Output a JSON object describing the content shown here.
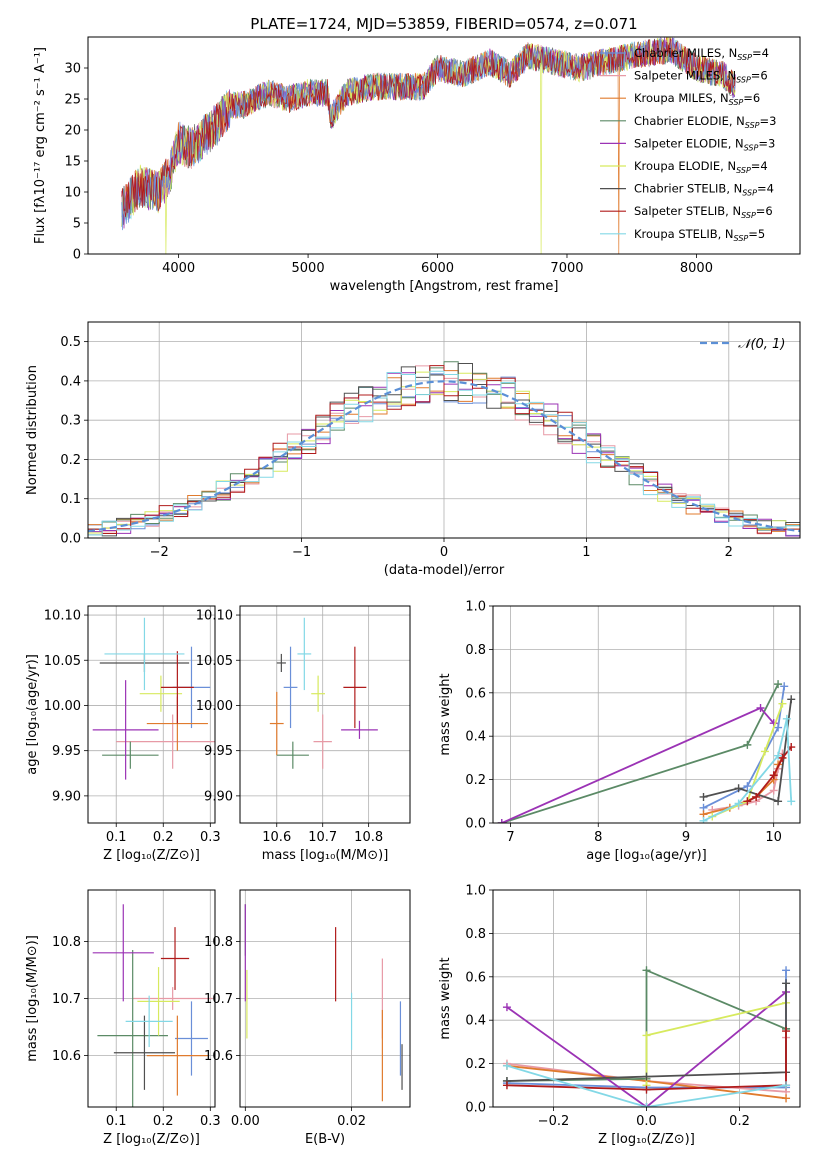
{
  "figure": {
    "title": "PLATE=1724, MJD=53859, FIBERID=0574, z=0.071"
  },
  "colors": {
    "Chabrier MILES": "#6a8fd8",
    "Salpeter MILES": "#e79aa6",
    "Kroupa MILES": "#e07b2e",
    "Chabrier ELODIE": "#5b8a66",
    "Salpeter ELODIE": "#9b33b5",
    "Kroupa ELODIE": "#d7ea5e",
    "Chabrier STELIB": "#505050",
    "Salpeter STELIB": "#b01b1b",
    "Kroupa STELIB": "#83d8e6",
    "grid": "#b0b0b0",
    "gauss": "#5b8fd6"
  },
  "chart_data": [
    {
      "id": "spectrum",
      "type": "line",
      "title": "PLATE=1724, MJD=53859, FIBERID=0574, z=0.071",
      "xlabel": "wavelength [Angstrom, rest frame]",
      "ylabel": "Flux [fλ10⁻¹⁷ erg cm⁻² s⁻¹ A⁻¹]",
      "xlim": [
        3300,
        8800
      ],
      "ylim": [
        0,
        35
      ],
      "xticks": [
        4000,
        5000,
        6000,
        7000,
        8000
      ],
      "yticks": [
        0,
        5,
        10,
        15,
        20,
        25,
        30
      ],
      "x_range_data": [
        3560,
        8300
      ],
      "envelope": {
        "x": [
          3560,
          3700,
          3850,
          3950,
          4000,
          4100,
          4200,
          4300,
          4400,
          4500,
          4700,
          4860,
          5000,
          5150,
          5175,
          5300,
          5500,
          5700,
          5890,
          6000,
          6200,
          6400,
          6560,
          6700,
          6900,
          7100,
          7300,
          7500,
          7800,
          8000,
          8200,
          8300
        ],
        "y": [
          7,
          11,
          10,
          14,
          18,
          17,
          19,
          21,
          24,
          24,
          26,
          25,
          26,
          26,
          22,
          26,
          27,
          27,
          27,
          30,
          29,
          31,
          29,
          32,
          31,
          30,
          31,
          32,
          33,
          30,
          29,
          27
        ]
      },
      "dropouts": [
        {
          "x": 3900,
          "series": "Kroupa ELODIE"
        },
        {
          "x": 6800,
          "series": "Kroupa ELODIE"
        },
        {
          "x": 7400,
          "series": "Kroupa MILES"
        }
      ],
      "legend": [
        {
          "label": "Chabrier MILES, N",
          "nssp": "4"
        },
        {
          "label": "Salpeter MILES, N",
          "nssp": "6"
        },
        {
          "label": "Kroupa MILES, N",
          "nssp": "6"
        },
        {
          "label": "Chabrier ELODIE, N",
          "nssp": "3"
        },
        {
          "label": "Salpeter ELODIE, N",
          "nssp": "3"
        },
        {
          "label": "Kroupa ELODIE, N",
          "nssp": "4"
        },
        {
          "label": "Chabrier STELIB, N",
          "nssp": "4"
        },
        {
          "label": "Salpeter STELIB, N",
          "nssp": "6"
        },
        {
          "label": "Kroupa STELIB, N",
          "nssp": "5"
        }
      ],
      "legend_sub": "SSP",
      "legend_position": "right"
    },
    {
      "id": "histogram",
      "type": "line",
      "xlabel": "(data-model)/error",
      "ylabel": "Normed distribution",
      "xlim": [
        -2.5,
        2.5
      ],
      "ylim": [
        0,
        0.55
      ],
      "xticks": [
        -2,
        -1,
        0,
        1,
        2
      ],
      "yticks": [
        0.0,
        0.1,
        0.2,
        0.3,
        0.4,
        0.5
      ],
      "bin_width": 0.1,
      "legend": "𝒩(0, 1)",
      "legend_position": "top-right",
      "grid": true
    },
    {
      "id": "age-vs-Z",
      "type": "scatter",
      "xlabel": "Z [log₁₀(Z/Z⊙)]",
      "ylabel": "age  [log₁₀(age/yr)]",
      "xlim": [
        0.04,
        0.31
      ],
      "ylim": [
        9.87,
        10.11
      ],
      "xticks": [
        0.1,
        0.2,
        0.3
      ],
      "yticks": [
        9.9,
        9.95,
        10.0,
        10.05,
        10.1
      ],
      "points": [
        {
          "series": "Chabrier MILES",
          "x": 0.26,
          "y": 10.02,
          "xerr": 0.04,
          "yerr": 0.045
        },
        {
          "series": "Salpeter MILES",
          "x": 0.22,
          "y": 9.96,
          "xerr": 0.12,
          "yerr": 0.03
        },
        {
          "series": "Kroupa MILES",
          "x": 0.23,
          "y": 9.98,
          "xerr": 0.065,
          "yerr": 0.03
        },
        {
          "series": "Chabrier ELODIE",
          "x": 0.13,
          "y": 9.945,
          "xerr": 0.06,
          "yerr": 0.015
        },
        {
          "series": "Salpeter ELODIE",
          "x": 0.12,
          "y": 9.973,
          "xerr": 0.07,
          "yerr": 0.055
        },
        {
          "series": "Kroupa ELODIE",
          "x": 0.195,
          "y": 10.013,
          "xerr": 0.045,
          "yerr": 0.02
        },
        {
          "series": "Chabrier STELIB",
          "x": 0.16,
          "y": 10.047,
          "xerr": 0.095,
          "yerr": 0.01
        },
        {
          "series": "Salpeter STELIB",
          "x": 0.23,
          "y": 10.02,
          "xerr": 0.035,
          "yerr": 0.04
        },
        {
          "series": "Kroupa STELIB",
          "x": 0.16,
          "y": 10.057,
          "xerr": 0.085,
          "yerr": 0.04
        }
      ],
      "grid": true
    },
    {
      "id": "age-vs-mass",
      "type": "scatter",
      "xlabel": "mass [log₁₀(M/M⊙)]",
      "ylabel": "",
      "xlim": [
        10.52,
        10.89
      ],
      "ylim": [
        9.87,
        10.11
      ],
      "xticks": [
        10.6,
        10.7,
        10.8
      ],
      "yticks": [
        9.9,
        9.95,
        10.0,
        10.05,
        10.1
      ],
      "points": [
        {
          "series": "Chabrier MILES",
          "x": 10.63,
          "y": 10.02,
          "xerr": 0.015,
          "yerr": 0.045
        },
        {
          "series": "Salpeter MILES",
          "x": 10.7,
          "y": 9.96,
          "xerr": 0.02,
          "yerr": 0.03
        },
        {
          "series": "Kroupa MILES",
          "x": 10.6,
          "y": 9.98,
          "xerr": 0.015,
          "yerr": 0.035
        },
        {
          "series": "Chabrier ELODIE",
          "x": 10.635,
          "y": 9.945,
          "xerr": 0.035,
          "yerr": 0.015
        },
        {
          "series": "Salpeter ELODIE",
          "x": 10.78,
          "y": 9.973,
          "xerr": 0.04,
          "yerr": 0.01
        },
        {
          "series": "Kroupa ELODIE",
          "x": 10.69,
          "y": 10.013,
          "xerr": 0.015,
          "yerr": 0.02
        },
        {
          "series": "Chabrier STELIB",
          "x": 10.61,
          "y": 10.047,
          "xerr": 0.01,
          "yerr": 0.01
        },
        {
          "series": "Salpeter STELIB",
          "x": 10.77,
          "y": 10.02,
          "xerr": 0.025,
          "yerr": 0.045
        },
        {
          "series": "Kroupa STELIB",
          "x": 10.66,
          "y": 10.057,
          "xerr": 0.015,
          "yerr": 0.04
        }
      ],
      "grid": true
    },
    {
      "id": "mass-weight-vs-age",
      "type": "line",
      "xlabel": "age  [log₁₀(age/yr)]",
      "ylabel": "mass weight",
      "xlim": [
        6.8,
        10.3
      ],
      "ylim": [
        0,
        1
      ],
      "xticks": [
        7,
        8,
        9,
        10
      ],
      "yticks": [
        0.0,
        0.2,
        0.4,
        0.6,
        0.8,
        1.0
      ],
      "series": [
        {
          "name": "Chabrier MILES",
          "x": [
            9.2,
            9.7,
            10.05,
            10.12
          ],
          "y": [
            0.07,
            0.17,
            0.44,
            0.63
          ]
        },
        {
          "name": "Salpeter MILES",
          "x": [
            9.3,
            9.6,
            9.8,
            10.0,
            10.05,
            10.1
          ],
          "y": [
            0.06,
            0.08,
            0.1,
            0.15,
            0.25,
            0.32
          ]
        },
        {
          "name": "Kroupa MILES",
          "x": [
            9.2,
            9.5,
            9.8,
            10.0,
            10.05,
            10.1
          ],
          "y": [
            0.04,
            0.07,
            0.12,
            0.2,
            0.27,
            0.3
          ]
        },
        {
          "name": "Chabrier ELODIE",
          "x": [
            6.9,
            9.7,
            10.05
          ],
          "y": [
            0.0,
            0.36,
            0.64
          ]
        },
        {
          "name": "Salpeter ELODIE",
          "x": [
            6.9,
            9.85,
            10.0
          ],
          "y": [
            0.0,
            0.53,
            0.46
          ]
        },
        {
          "name": "Kroupa ELODIE",
          "x": [
            9.3,
            9.7,
            9.9,
            10.1
          ],
          "y": [
            0.03,
            0.1,
            0.33,
            0.55
          ]
        },
        {
          "name": "Chabrier STELIB",
          "x": [
            9.2,
            9.6,
            10.05,
            10.2
          ],
          "y": [
            0.12,
            0.16,
            0.1,
            0.57
          ]
        },
        {
          "name": "Salpeter STELIB",
          "x": [
            9.7,
            9.8,
            10.0,
            10.1,
            10.2
          ],
          "y": [
            0.1,
            0.12,
            0.22,
            0.3,
            0.35
          ]
        },
        {
          "name": "Kroupa STELIB",
          "x": [
            9.2,
            9.6,
            10.05,
            10.15,
            10.2
          ],
          "y": [
            0.01,
            0.09,
            0.31,
            0.48,
            0.1
          ]
        }
      ],
      "grid": true
    },
    {
      "id": "mass-vs-Z",
      "type": "scatter",
      "xlabel": "Z [log₁₀(Z/Z⊙)]",
      "ylabel": "mass [log₁₀(M/M⊙)]",
      "xlim": [
        0.04,
        0.31
      ],
      "ylim": [
        10.51,
        10.89
      ],
      "xticks": [
        0.1,
        0.2,
        0.3
      ],
      "yticks": [
        10.6,
        10.7,
        10.8
      ],
      "points": [
        {
          "series": "Chabrier MILES",
          "x": 0.26,
          "y": 10.63,
          "xerr": 0.035,
          "yerr": 0.065
        },
        {
          "series": "Salpeter MILES",
          "x": 0.22,
          "y": 10.7,
          "xerr": 0.085,
          "yerr": 0.02
        },
        {
          "series": "Kroupa MILES",
          "x": 0.23,
          "y": 10.6,
          "xerr": 0.065,
          "yerr": 0.07
        },
        {
          "series": "Chabrier ELODIE",
          "x": 0.135,
          "y": 10.635,
          "xerr": 0.075,
          "yerr": 0.15
        },
        {
          "series": "Salpeter ELODIE",
          "x": 0.115,
          "y": 10.78,
          "xerr": 0.065,
          "yerr": 0.085
        },
        {
          "series": "Kroupa ELODIE",
          "x": 0.19,
          "y": 10.695,
          "xerr": 0.045,
          "yerr": 0.06
        },
        {
          "series": "Chabrier STELIB",
          "x": 0.16,
          "y": 10.605,
          "xerr": 0.065,
          "yerr": 0.065
        },
        {
          "series": "Salpeter STELIB",
          "x": 0.225,
          "y": 10.77,
          "xerr": 0.03,
          "yerr": 0.055
        },
        {
          "series": "Kroupa STELIB",
          "x": 0.17,
          "y": 10.66,
          "xerr": 0.05,
          "yerr": 0.045
        }
      ],
      "grid": true
    },
    {
      "id": "mass-vs-ebv",
      "type": "scatter",
      "xlabel": "E(B-V)",
      "ylabel": "",
      "xlim": [
        -0.001,
        0.031
      ],
      "ylim": [
        10.51,
        10.89
      ],
      "xticks": [
        0.0,
        0.02
      ],
      "yticks": [
        10.6,
        10.7,
        10.8
      ],
      "points": [
        {
          "series": "Chabrier MILES",
          "x": 0.0292,
          "y": 10.63,
          "yerr": 0.065
        },
        {
          "series": "Salpeter MILES",
          "x": 0.0258,
          "y": 10.7,
          "yerr": 0.07
        },
        {
          "series": "Kroupa MILES",
          "x": 0.0258,
          "y": 10.6,
          "yerr": 0.08
        },
        {
          "series": "Chabrier ELODIE",
          "x": 0.0,
          "y": 10.82,
          "yerr": 0.045
        },
        {
          "series": "Salpeter ELODIE",
          "x": 0.0,
          "y": 10.78,
          "yerr": 0.085
        },
        {
          "series": "Kroupa ELODIE",
          "x": 0.0003,
          "y": 10.69,
          "yerr": 0.06
        },
        {
          "series": "Chabrier STELIB",
          "x": 0.0295,
          "y": 10.58,
          "yerr": 0.04
        },
        {
          "series": "Salpeter STELIB",
          "x": 0.017,
          "y": 10.76,
          "yerr": 0.065
        },
        {
          "series": "Kroupa STELIB",
          "x": 0.02,
          "y": 10.66,
          "yerr": 0.05
        }
      ],
      "grid": true
    },
    {
      "id": "mass-weight-vs-Z",
      "type": "line",
      "xlabel": "Z [log₁₀(Z/Z⊙)]",
      "ylabel": "mass weight",
      "xlim": [
        -0.33,
        0.33
      ],
      "ylim": [
        0,
        1
      ],
      "xticks": [
        -0.2,
        0.0,
        0.2
      ],
      "yticks": [
        0.0,
        0.2,
        0.4,
        0.6,
        0.8,
        1.0
      ],
      "series": [
        {
          "name": "Chabrier MILES",
          "x": [
            -0.3,
            0.0,
            0.3,
            0.3
          ],
          "y": [
            0.11,
            0.09,
            0.09,
            0.63
          ]
        },
        {
          "name": "Salpeter MILES",
          "x": [
            -0.3,
            0.0,
            0.3,
            0.3
          ],
          "y": [
            0.2,
            0.12,
            0.07,
            0.32
          ]
        },
        {
          "name": "Kroupa MILES",
          "x": [
            -0.3,
            0.0,
            0.3
          ],
          "y": [
            0.19,
            0.12,
            0.04
          ]
        },
        {
          "name": "Chabrier ELODIE",
          "x": [
            -0.3,
            0.0,
            0.0,
            0.3,
            0.3
          ],
          "y": [
            0.12,
            0.13,
            0.63,
            0.36,
            0.36
          ]
        },
        {
          "name": "Salpeter ELODIE",
          "x": [
            -0.3,
            0.0,
            0.3
          ],
          "y": [
            0.46,
            0.0,
            0.53
          ]
        },
        {
          "name": "Kroupa ELODIE",
          "x": [
            0.0,
            0.0,
            0.3
          ],
          "y": [
            0.1,
            0.33,
            0.48
          ]
        },
        {
          "name": "Chabrier STELIB",
          "x": [
            -0.3,
            0.0,
            0.3,
            0.3
          ],
          "y": [
            0.12,
            0.14,
            0.16,
            0.57
          ]
        },
        {
          "name": "Salpeter STELIB",
          "x": [
            -0.3,
            0.0,
            0.3,
            0.3
          ],
          "y": [
            0.1,
            0.08,
            0.1,
            0.35
          ]
        },
        {
          "name": "Kroupa STELIB",
          "x": [
            -0.3,
            0.0,
            0.3
          ],
          "y": [
            0.19,
            0.0,
            0.1
          ]
        }
      ],
      "grid": true
    }
  ]
}
